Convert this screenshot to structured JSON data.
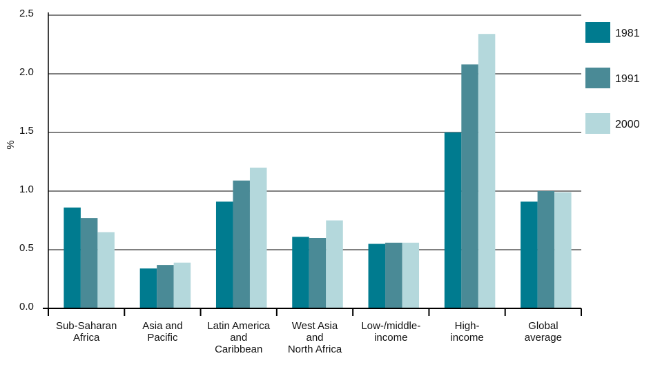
{
  "chart_data": {
    "type": "bar",
    "ylabel": "%",
    "ylim": [
      0,
      2.5
    ],
    "yticks": [
      "0.0",
      "0.5",
      "1.0",
      "1.5",
      "2.0",
      "2.5"
    ],
    "grid": true,
    "legend_position": "right",
    "categories": [
      [
        "Sub-Saharan",
        "Africa"
      ],
      [
        "Asia and",
        "Pacific"
      ],
      [
        "Latin America",
        "and",
        "Caribbean"
      ],
      [
        "West Asia",
        "and",
        "North Africa"
      ],
      [
        "Low-/middle-",
        "income"
      ],
      [
        "High-",
        "income"
      ],
      [
        "Global",
        "average"
      ]
    ],
    "series": [
      {
        "name": "1981",
        "color": "#007b8f",
        "values": [
          0.86,
          0.34,
          0.91,
          0.61,
          0.55,
          1.5,
          0.91
        ]
      },
      {
        "name": "1991",
        "color": "#4a8a96",
        "values": [
          0.77,
          0.37,
          1.09,
          0.6,
          0.56,
          2.08,
          1.0
        ]
      },
      {
        "name": "2000",
        "color": "#b4d8dc",
        "values": [
          0.65,
          0.39,
          1.2,
          0.75,
          0.56,
          2.34,
          0.99
        ]
      }
    ]
  }
}
